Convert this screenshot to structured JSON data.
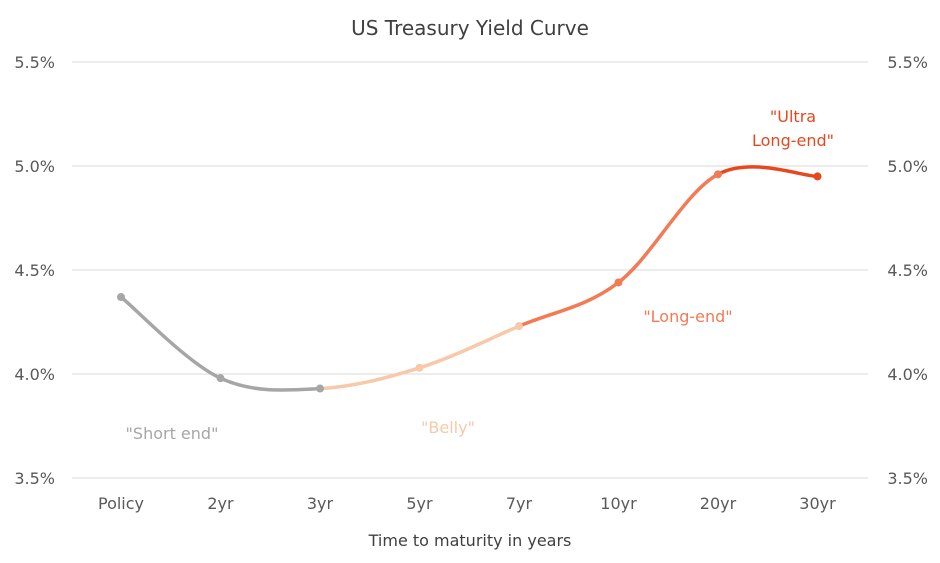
{
  "chart_data": {
    "type": "line",
    "title": "US Treasury Yield Curve",
    "xlabel": "Time to maturity in years",
    "ylabel": "",
    "categories": [
      "Policy",
      "2yr",
      "3yr",
      "5yr",
      "7yr",
      "10yr",
      "20yr",
      "30yr"
    ],
    "ylim": [
      3.5,
      5.5
    ],
    "yticks": [
      3.5,
      4.0,
      4.5,
      5.0,
      5.5
    ],
    "ytick_labels": [
      "3.5%",
      "4.0%",
      "4.5%",
      "5.0%",
      "5.5%"
    ],
    "grid": true,
    "secondary_y_axis": true,
    "values": [
      4.37,
      3.98,
      3.93,
      4.03,
      4.23,
      4.44,
      4.96,
      4.95
    ],
    "segments": [
      {
        "from": 0,
        "to": 2,
        "color": "#a6a6a6"
      },
      {
        "from": 2,
        "to": 4,
        "color": "#f7c9a8"
      },
      {
        "from": 4,
        "to": 6,
        "color": "#f27a54"
      },
      {
        "from": 6,
        "to": 7,
        "color": "#e8471e"
      }
    ],
    "annotations": [
      {
        "text": "\"Short end\"",
        "color": "#a6a6a6"
      },
      {
        "text": "\"Belly\"",
        "color": "#f7c9a8"
      },
      {
        "text": "\"Long-end\"",
        "color": "#f27a54"
      },
      {
        "text": "\"Ultra\nLong-end\"",
        "color": "#e8471e"
      }
    ]
  }
}
